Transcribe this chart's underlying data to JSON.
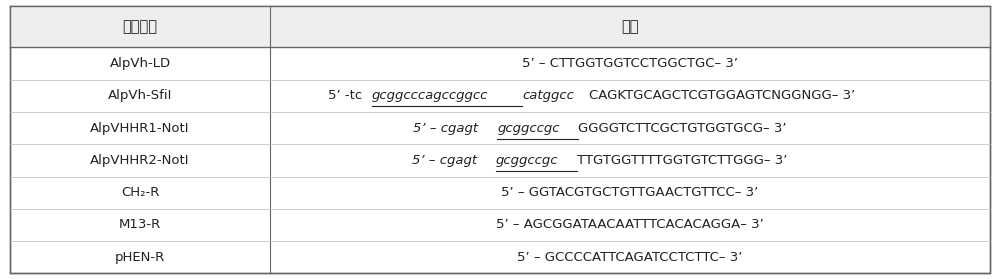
{
  "col_headers": [
    "引物名称",
    "序列"
  ],
  "col_div": 0.27,
  "rows": [
    {
      "name": "AlpVh-LD",
      "parts": [
        {
          "t": "5’ – CTTGGTGGTCCTGGCTGC– 3’",
          "italic": false,
          "underline": false
        }
      ]
    },
    {
      "name": "AlpVh-SfiI",
      "parts": [
        {
          "t": "5’ -tc",
          "italic": false,
          "underline": false
        },
        {
          "t": "gcggcccagccggcc",
          "italic": true,
          "underline": true
        },
        {
          "t": "catggcc",
          "italic": true,
          "underline": false
        },
        {
          "t": "CAGKTGCAGCTCGTGGAGTCNGGNGG– 3’",
          "italic": false,
          "underline": false
        }
      ]
    },
    {
      "name": "AlpVHHR1-NotI",
      "parts": [
        {
          "t": "5’ – cgagt",
          "italic": true,
          "underline": false
        },
        {
          "t": "gcggccgc",
          "italic": true,
          "underline": true
        },
        {
          "t": "GGGGTCTTCGCTGTGGTGCG– 3’",
          "italic": false,
          "underline": false
        }
      ]
    },
    {
      "name": "AlpVHHR2-NotI",
      "parts": [
        {
          "t": "5’ – cgagt",
          "italic": true,
          "underline": false
        },
        {
          "t": "gcggccgc",
          "italic": true,
          "underline": true
        },
        {
          "t": "TTGTGGTTTTGGTGTCTTGGG– 3’",
          "italic": false,
          "underline": false
        }
      ]
    },
    {
      "name": "CH₂-R",
      "parts": [
        {
          "t": "5’ – GGTACGTGCTGTTGAACTGTTCC– 3’",
          "italic": false,
          "underline": false
        }
      ]
    },
    {
      "name": "M13-R",
      "parts": [
        {
          "t": "5’ – AGCGGATAACAATTTCACACAGGA– 3’",
          "italic": false,
          "underline": false
        }
      ]
    },
    {
      "name": "pHEN-R",
      "parts": [
        {
          "t": "5’ – GCCCCATTCAGATCCTCTTC– 3’",
          "italic": false,
          "underline": false
        }
      ]
    }
  ],
  "fontsize": 9.5,
  "header_fontsize": 10.5,
  "text_color": "#222222",
  "border_color": "#666666",
  "bg_color": "#f0f0f0",
  "row_bg": "#ffffff"
}
